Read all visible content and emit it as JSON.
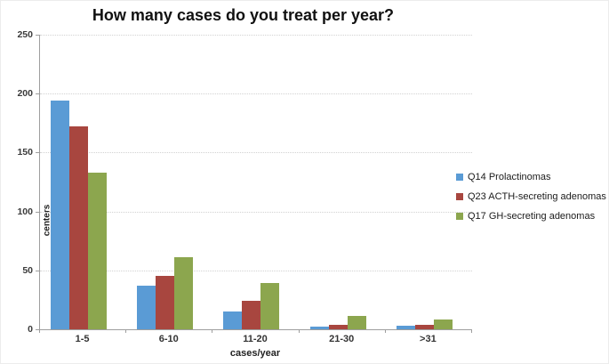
{
  "figure": {
    "title": "How many cases do you treat per year?"
  },
  "chart_data": {
    "type": "bar",
    "title": "How many cases do you treat per year?",
    "categories": [
      "1-5",
      "6-10",
      "11-20",
      "21-30",
      ">31"
    ],
    "series": [
      {
        "name": "Q14 Prolactinomas",
        "color": "#5A9BD5",
        "values": [
          194,
          37,
          15,
          2,
          3
        ]
      },
      {
        "name": "Q23 ACTH-secreting adenomas",
        "color": "#A8463F",
        "values": [
          172,
          45,
          24,
          4,
          4
        ]
      },
      {
        "name": "Q17 GH-secreting adenomas",
        "color": "#8CA64E",
        "values": [
          133,
          61,
          39,
          11,
          8
        ]
      }
    ],
    "xlabel": "cases/year",
    "ylabel": "centers",
    "ylim": [
      0,
      250
    ],
    "yticks": [
      0,
      50,
      100,
      150,
      200,
      250
    ],
    "grid": "horizontal-dotted",
    "legend_position": "right"
  }
}
